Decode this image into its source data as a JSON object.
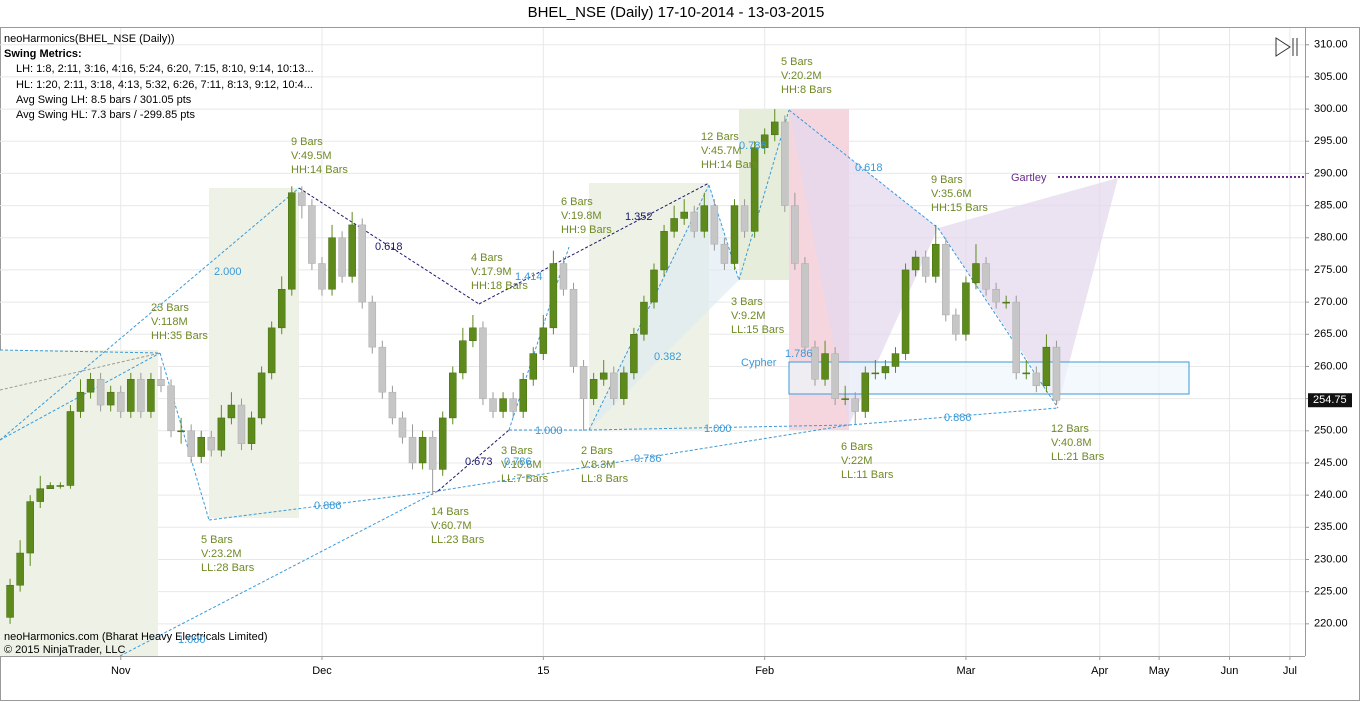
{
  "chart_data": {
    "type": "candlestick",
    "title": "BHEL_NSE (Daily)  17-10-2014 - 13-03-2015",
    "indicator": "neoHarmonics(BHEL_NSE (Daily))",
    "metrics_title": "Swing Metrics:",
    "metrics": [
      "LH: 1:8, 2:11, 3:16, 4:16, 5:24, 6:20, 7:15, 8:10, 9:14, 10:13...",
      "HL: 1:20, 2:11, 3:18, 4:13, 5:32, 6:26, 7:11, 8:13, 9:12, 10:4...",
      "Avg Swing LH: 8.5 bars / 301.05 pts",
      "Avg Swing HL: 7.3 bars / -299.85 pts"
    ],
    "footer": [
      "neoHarmonics.com (Bharat Heavy Electricals Limited)",
      "© 2015 NinjaTrader, LLC"
    ],
    "pattern_labels": [
      "Cypher",
      "Gartley"
    ],
    "up_color": "#5e8a1c",
    "down_color": "#c6c6c6",
    "xlim": [
      -1,
      128.7
    ],
    "xticks": [
      {
        "value": 11,
        "label": "Nov"
      },
      {
        "value": 31,
        "label": "Dec"
      },
      {
        "value": 53,
        "label": "15"
      },
      {
        "value": 75,
        "label": "Feb"
      },
      {
        "value": 95,
        "label": "Mar"
      },
      {
        "value": 108.3,
        "label": "Apr"
      },
      {
        "value": 114.2,
        "label": "May"
      },
      {
        "value": 121.2,
        "label": "Jun"
      },
      {
        "value": 127.2,
        "label": "Jul"
      }
    ],
    "ylim": [
      215,
      312.6
    ],
    "yticks": [
      {
        "value": 220,
        "label": "220.00"
      },
      {
        "value": 225,
        "label": "225.00"
      },
      {
        "value": 230,
        "label": "230.00"
      },
      {
        "value": 235,
        "label": "235.00"
      },
      {
        "value": 240,
        "label": "240.00"
      },
      {
        "value": 245,
        "label": "245.00"
      },
      {
        "value": 250,
        "label": "250.00"
      },
      {
        "value": 255,
        "label": "255.00"
      },
      {
        "value": 260,
        "label": "260.00"
      },
      {
        "value": 265,
        "label": "265.00"
      },
      {
        "value": 270,
        "label": "270.00"
      },
      {
        "value": 275,
        "label": "275.00"
      },
      {
        "value": 280,
        "label": "280.00"
      },
      {
        "value": 285,
        "label": "285.00"
      },
      {
        "value": 290,
        "label": "290.00"
      },
      {
        "value": 295,
        "label": "295.00"
      },
      {
        "value": 300,
        "label": "300.00"
      },
      {
        "value": 305,
        "label": "305.00"
      },
      {
        "value": 310,
        "label": "310.00"
      }
    ],
    "grid": true,
    "last_price": 254.75,
    "open": [
      221,
      226,
      231,
      239,
      241,
      241.5,
      241.5,
      253,
      256,
      258,
      254,
      256,
      253,
      258,
      253,
      258,
      257,
      250,
      250,
      246,
      249,
      247,
      252,
      254,
      248,
      252,
      259,
      266,
      272,
      287,
      285,
      276,
      272,
      280,
      274,
      282,
      270,
      263,
      256,
      252,
      249,
      245,
      249,
      244,
      252,
      259,
      264,
      266,
      255,
      253,
      255,
      253,
      258,
      262,
      266,
      276,
      272,
      260,
      255,
      258,
      259,
      255,
      259,
      265,
      270,
      275,
      281,
      283,
      284,
      281,
      285,
      279,
      276,
      285,
      281,
      294,
      296,
      298,
      285,
      276,
      263,
      258,
      262,
      255,
      255,
      253,
      259,
      259,
      260,
      262,
      275,
      277,
      274,
      279,
      268,
      265,
      273,
      276,
      272,
      270,
      270,
      259,
      259,
      257,
      263
    ],
    "high": [
      227,
      233,
      240,
      243,
      242,
      242,
      254,
      258,
      259,
      259,
      257,
      257,
      259,
      259,
      259,
      260,
      258,
      252,
      251,
      250,
      250,
      254,
      256,
      255,
      253,
      260,
      267,
      274,
      288,
      288,
      286,
      277,
      282,
      281,
      284,
      283,
      271,
      264,
      257,
      253,
      251,
      250,
      250,
      253,
      260,
      266,
      268,
      267,
      256,
      256,
      256,
      259,
      263,
      268,
      278,
      277,
      273,
      261,
      259,
      261,
      260,
      260,
      266,
      271,
      276,
      282,
      285,
      286,
      285,
      287,
      286,
      280,
      286,
      286,
      295,
      297,
      300,
      299,
      287,
      277,
      264,
      264,
      263,
      257,
      256,
      260,
      261,
      261,
      263,
      276,
      278,
      278,
      282,
      280,
      269,
      274,
      279,
      277,
      273,
      271,
      271,
      261,
      260,
      265,
      264
    ],
    "low": [
      220,
      225,
      229,
      238,
      241,
      241,
      241,
      252,
      255,
      253,
      253,
      252,
      252,
      252,
      252,
      256,
      249,
      248,
      245,
      245,
      246,
      246,
      251,
      247,
      247,
      251,
      258,
      265,
      271,
      283,
      275,
      271,
      271,
      273,
      273,
      269,
      262,
      255,
      251,
      248,
      244,
      244,
      240,
      243,
      251,
      258,
      263,
      254,
      252,
      252,
      252,
      252,
      257,
      261,
      265,
      271,
      259,
      250,
      254,
      257,
      254,
      254,
      258,
      264,
      269,
      274,
      280,
      282,
      280,
      280,
      278,
      275,
      275,
      280,
      280,
      293,
      295,
      284,
      275,
      262,
      257,
      257,
      254,
      254,
      251,
      252,
      258,
      258,
      259,
      261,
      274,
      273,
      273,
      267,
      264,
      264,
      272,
      271,
      269,
      269,
      258,
      258,
      256,
      256,
      254
    ],
    "close": [
      226,
      231,
      239,
      241,
      241.5,
      241.5,
      253,
      256,
      258,
      254,
      256,
      253,
      258,
      253,
      258,
      257,
      250,
      250,
      246,
      249,
      247,
      252,
      254,
      248,
      252,
      259,
      266,
      272,
      287,
      285,
      276,
      272,
      280,
      274,
      282,
      270,
      263,
      256,
      252,
      249,
      245,
      249,
      244,
      252,
      259,
      264,
      266,
      255,
      253,
      255,
      253,
      258,
      262,
      266,
      276,
      272,
      260,
      255,
      258,
      259,
      255,
      259,
      265,
      270,
      275,
      281,
      283,
      284,
      281,
      285,
      279,
      276,
      285,
      281,
      294,
      296,
      298,
      285,
      276,
      263,
      258,
      262,
      255,
      255,
      253,
      259,
      259,
      260,
      262,
      275,
      277,
      274,
      279,
      268,
      265,
      273,
      276,
      272,
      270,
      270,
      259,
      259,
      257,
      263,
      254.75
    ],
    "annotations": [
      {
        "lines": [
          "23 Bars",
          "V:118M",
          "HH:35 Bars"
        ]
      },
      {
        "lines": [
          "9 Bars",
          "V:49.5M",
          "HH:14 Bars"
        ]
      },
      {
        "lines": [
          "5 Bars",
          "V:23.2M",
          "LL:28 Bars"
        ]
      },
      {
        "lines": [
          "14 Bars",
          "V:60.7M",
          "LL:23 Bars"
        ]
      },
      {
        "lines": [
          "4 Bars",
          "V:17.9M",
          "HH:18 Bars"
        ]
      },
      {
        "lines": [
          "3 Bars",
          "V:10.6M",
          "LL:7 Bars"
        ]
      },
      {
        "lines": [
          "6 Bars",
          "V:19.8M",
          "HH:9 Bars"
        ]
      },
      {
        "lines": [
          "2 Bars",
          "V:8.3M",
          "LL:8 Bars"
        ]
      },
      {
        "lines": [
          "12 Bars",
          "V:45.7M",
          "HH:14 Bars"
        ]
      },
      {
        "lines": [
          "3 Bars",
          "V:9.2M",
          "LL:15 Bars"
        ]
      },
      {
        "lines": [
          "5 Bars",
          "V:20.2M",
          "HH:8 Bars"
        ]
      },
      {
        "lines": [
          "6 Bars",
          "V:22M",
          "LL:11 Bars"
        ]
      },
      {
        "lines": [
          "9 Bars",
          "V:35.6M",
          "HH:15 Bars"
        ]
      },
      {
        "lines": [
          "12 Bars",
          "V:40.8M",
          "LL:21 Bars"
        ]
      }
    ],
    "ratio_labels": [
      "2.000",
      "0.886",
      "1.414",
      "0.382",
      "0.786",
      "0.786",
      "1.000",
      "1.000",
      "0.786",
      "0.618",
      "1.786",
      "0.886",
      "1.000"
    ],
    "ratio_labels_dark": [
      "0.618",
      "1.352",
      "0.673"
    ]
  }
}
